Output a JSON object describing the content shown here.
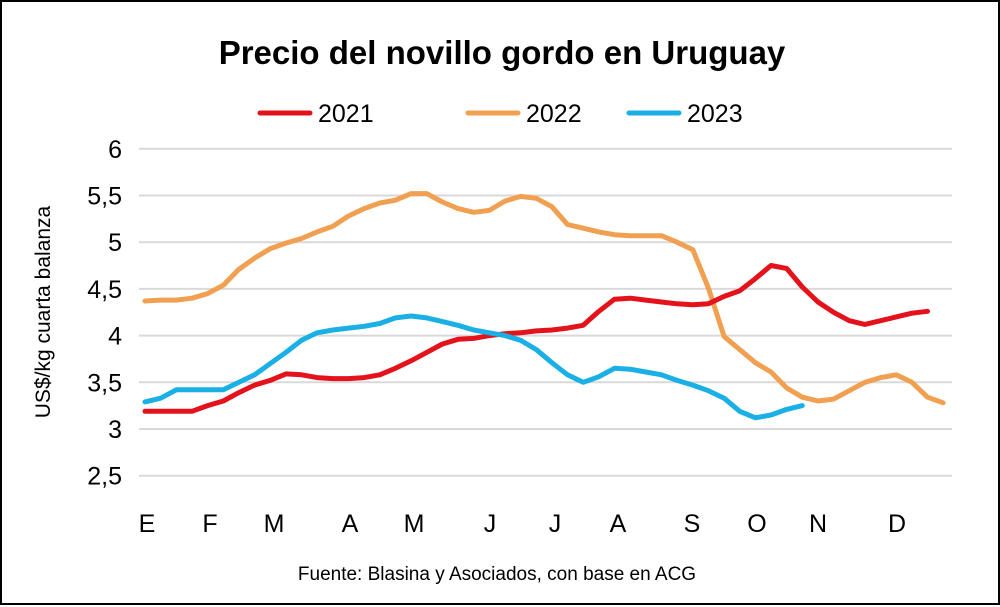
{
  "chart_data": {
    "type": "line",
    "title": "Precio del novillo gordo en Uruguay",
    "ylabel": "US$/kg cuarta balanza",
    "xlabel": "",
    "ylim": [
      2.5,
      6
    ],
    "yticks": [
      "2,5",
      "3",
      "3,5",
      "4",
      "4,5",
      "5",
      "5,5",
      "6"
    ],
    "ytick_values": [
      2.5,
      3,
      3.5,
      4,
      4.5,
      5,
      5.5,
      6
    ],
    "x_tick_labels": [
      "E",
      "F",
      "M",
      "A",
      "M",
      "J",
      "J",
      "A",
      "S",
      "O",
      "N",
      "D"
    ],
    "grid": true,
    "legend_position": "top",
    "source": "Fuente: Blasina y Asociados, con base en ACG",
    "series": [
      {
        "name": "2021",
        "color": "#e3121b",
        "values": [
          3.19,
          3.19,
          3.19,
          3.19,
          3.25,
          3.3,
          3.39,
          3.47,
          3.52,
          3.59,
          3.58,
          3.55,
          3.54,
          3.54,
          3.55,
          3.58,
          3.65,
          3.73,
          3.82,
          3.91,
          3.96,
          3.97,
          4.0,
          4.02,
          4.03,
          4.05,
          4.06,
          4.08,
          4.11,
          4.26,
          4.39,
          4.4,
          4.38,
          4.36,
          4.34,
          4.33,
          4.34,
          4.42,
          4.48,
          4.61,
          4.75,
          4.72,
          4.52,
          4.36,
          4.25,
          4.16,
          4.12,
          4.16,
          4.2,
          4.24,
          4.26
        ]
      },
      {
        "name": "2022",
        "color": "#f0a050",
        "values": [
          4.37,
          4.38,
          4.38,
          4.4,
          4.45,
          4.54,
          4.71,
          4.83,
          4.93,
          4.99,
          5.04,
          5.11,
          5.17,
          5.28,
          5.36,
          5.42,
          5.45,
          5.52,
          5.52,
          5.43,
          5.36,
          5.32,
          5.34,
          5.44,
          5.49,
          5.47,
          5.38,
          5.19,
          5.15,
          5.11,
          5.08,
          5.07,
          5.07,
          5.07,
          5.0,
          4.92,
          4.51,
          3.99,
          3.85,
          3.71,
          3.61,
          3.44,
          3.34,
          3.3,
          3.32,
          3.41,
          3.5,
          3.55,
          3.58,
          3.5,
          3.34,
          3.28
        ]
      },
      {
        "name": "2023",
        "color": "#1ab0e6",
        "values": [
          3.29,
          3.33,
          3.42,
          3.42,
          3.42,
          3.42,
          3.5,
          3.58,
          3.7,
          3.82,
          3.95,
          4.03,
          4.06,
          4.08,
          4.1,
          4.13,
          4.19,
          4.21,
          4.19,
          4.15,
          4.11,
          4.06,
          4.03,
          4.0,
          3.95,
          3.85,
          3.71,
          3.58,
          3.5,
          3.56,
          3.65,
          3.64,
          3.61,
          3.58,
          3.52,
          3.47,
          3.41,
          3.33,
          3.19,
          3.12,
          3.15,
          3.21,
          3.25
        ]
      }
    ]
  }
}
